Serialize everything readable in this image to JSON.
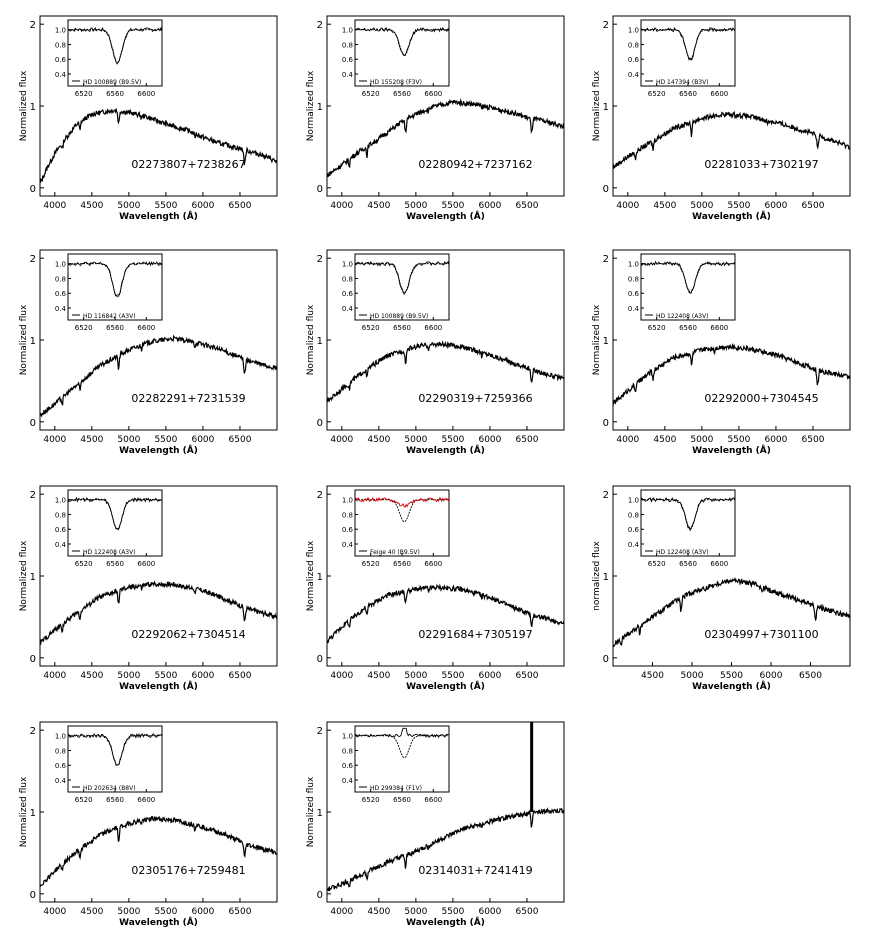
{
  "figure": {
    "main_ylabel": "Normalized flux",
    "alt_ylabel": "normalized flux",
    "xlabel": "Wavelength (Å)"
  },
  "chart_data": [
    {
      "type": "line",
      "id": "02273807+7238267",
      "label": "02273807+7238267",
      "xlim": [
        3800,
        7000
      ],
      "ylim": [
        0,
        2
      ],
      "xticks": [
        4000,
        4500,
        5000,
        5500,
        6000,
        6500
      ],
      "yticks": [
        0,
        1,
        2
      ],
      "inset": {
        "label": "HD 100889 (B9.5V)",
        "xlim": [
          6500,
          6620
        ],
        "xticks": [
          6520,
          6560,
          6600
        ],
        "yticks": [
          0.4,
          0.6,
          0.8,
          1.0
        ],
        "depth": 0.45
      },
      "series": {
        "name": "spectrum",
        "x": [
          3800,
          3900,
          4000,
          4100,
          4300,
          4500,
          4800,
          5000,
          5200,
          5500,
          5800,
          6000,
          6200,
          6500,
          6800,
          7000
        ],
        "y": [
          0.05,
          0.25,
          0.42,
          0.55,
          0.78,
          0.9,
          0.95,
          0.92,
          0.88,
          0.78,
          0.7,
          0.62,
          0.55,
          0.48,
          0.4,
          0.32
        ]
      }
    },
    {
      "type": "line",
      "id": "02280942+7237162",
      "label": "02280942+7237162",
      "xlim": [
        3800,
        7000
      ],
      "ylim": [
        0,
        2
      ],
      "xticks": [
        4000,
        4500,
        5000,
        5500,
        6000,
        6500
      ],
      "yticks": [
        0,
        1,
        2
      ],
      "inset": {
        "label": "HD 155208 (F3V)",
        "xlim": [
          6500,
          6620
        ],
        "xticks": [
          6520,
          6560,
          6600
        ],
        "yticks": [
          0.4,
          0.6,
          0.8,
          1.0
        ],
        "depth": 0.35
      },
      "series": {
        "name": "spectrum",
        "x": [
          3800,
          4000,
          4200,
          4500,
          4800,
          5000,
          5200,
          5500,
          5800,
          6000,
          6300,
          6500,
          6800,
          7000
        ],
        "y": [
          0.15,
          0.28,
          0.42,
          0.6,
          0.8,
          0.9,
          0.98,
          1.05,
          1.02,
          0.98,
          0.92,
          0.86,
          0.8,
          0.75
        ]
      }
    },
    {
      "type": "line",
      "id": "02281033+7302197",
      "label": "02281033+7302197",
      "xlim": [
        3800,
        7000
      ],
      "ylim": [
        0,
        2
      ],
      "xticks": [
        4000,
        4500,
        5000,
        5500,
        6000,
        6500
      ],
      "yticks": [
        0,
        1,
        2
      ],
      "inset": {
        "label": "HD 147394 (B3V)",
        "xlim": [
          6500,
          6620
        ],
        "xticks": [
          6520,
          6560,
          6600
        ],
        "yticks": [
          0.4,
          0.6,
          0.8,
          1.0
        ],
        "depth": 0.4
      },
      "series": {
        "name": "spectrum",
        "x": [
          3800,
          4000,
          4300,
          4600,
          5000,
          5300,
          5600,
          6000,
          6300,
          6600,
          7000
        ],
        "y": [
          0.25,
          0.38,
          0.55,
          0.72,
          0.85,
          0.9,
          0.88,
          0.8,
          0.72,
          0.63,
          0.5
        ]
      }
    },
    {
      "type": "line",
      "id": "02282291+7231539",
      "label": "02282291+7231539",
      "xlim": [
        3800,
        7000
      ],
      "ylim": [
        0,
        2
      ],
      "xticks": [
        4000,
        4500,
        5000,
        5500,
        6000,
        6500
      ],
      "yticks": [
        0,
        1,
        2
      ],
      "inset": {
        "label": "HD 116842 (A3V)",
        "xlim": [
          6500,
          6620
        ],
        "xticks": [
          6520,
          6560,
          6600
        ],
        "yticks": [
          0.4,
          0.6,
          0.8,
          1.0
        ],
        "depth": 0.45
      },
      "series": {
        "name": "spectrum",
        "x": [
          3800,
          4000,
          4300,
          4600,
          5000,
          5300,
          5600,
          6000,
          6300,
          6600,
          7000
        ],
        "y": [
          0.08,
          0.22,
          0.45,
          0.68,
          0.88,
          0.98,
          1.02,
          0.95,
          0.86,
          0.75,
          0.65
        ]
      }
    },
    {
      "type": "line",
      "id": "02290319+7259366",
      "label": "02290319+7259366",
      "xlim": [
        3800,
        7000
      ],
      "ylim": [
        0,
        2
      ],
      "xticks": [
        4000,
        4500,
        5000,
        5500,
        6000,
        6500
      ],
      "yticks": [
        0,
        1,
        2
      ],
      "inset": {
        "label": "HD 100889 (B9.5V)",
        "xlim": [
          6500,
          6620
        ],
        "xticks": [
          6520,
          6560,
          6600
        ],
        "yticks": [
          0.4,
          0.6,
          0.8,
          1.0
        ],
        "depth": 0.4
      },
      "series": {
        "name": "spectrum",
        "x": [
          3800,
          4000,
          4300,
          4600,
          5000,
          5300,
          5600,
          6000,
          6300,
          6600,
          7000
        ],
        "y": [
          0.25,
          0.4,
          0.62,
          0.8,
          0.92,
          0.95,
          0.92,
          0.82,
          0.72,
          0.63,
          0.52
        ]
      }
    },
    {
      "type": "line",
      "id": "02292000+7304545",
      "label": "02292000+7304545",
      "xlim": [
        3800,
        7000
      ],
      "ylim": [
        0,
        2
      ],
      "xticks": [
        4000,
        4500,
        5000,
        5500,
        6000,
        6500
      ],
      "yticks": [
        0,
        1,
        2
      ],
      "inset": {
        "label": "HD 122408 (A3V)",
        "xlim": [
          6500,
          6620
        ],
        "xticks": [
          6520,
          6560,
          6600
        ],
        "yticks": [
          0.4,
          0.6,
          0.8,
          1.0
        ],
        "depth": 0.4
      },
      "series": {
        "name": "spectrum",
        "x": [
          3800,
          4000,
          4300,
          4600,
          5000,
          5300,
          5600,
          6000,
          6300,
          6600,
          7000
        ],
        "y": [
          0.22,
          0.38,
          0.6,
          0.78,
          0.88,
          0.92,
          0.9,
          0.82,
          0.72,
          0.62,
          0.55
        ]
      }
    },
    {
      "type": "line",
      "id": "02292062+7304514",
      "label": "02292062+7304514",
      "xlim": [
        3800,
        7000
      ],
      "ylim": [
        0,
        2
      ],
      "xticks": [
        4000,
        4500,
        5000,
        5500,
        6000,
        6500
      ],
      "yticks": [
        0,
        1,
        2
      ],
      "inset": {
        "label": "HD 122408 (A3V)",
        "xlim": [
          6500,
          6620
        ],
        "xticks": [
          6520,
          6560,
          6600
        ],
        "yticks": [
          0.4,
          0.6,
          0.8,
          1.0
        ],
        "depth": 0.4
      },
      "series": {
        "name": "spectrum",
        "x": [
          3800,
          4000,
          4300,
          4600,
          5000,
          5300,
          5600,
          6000,
          6300,
          6600,
          7000
        ],
        "y": [
          0.18,
          0.34,
          0.55,
          0.74,
          0.86,
          0.9,
          0.9,
          0.82,
          0.72,
          0.6,
          0.5
        ]
      }
    },
    {
      "type": "line",
      "id": "02291684+7305197",
      "label": "02291684+7305197",
      "xlim": [
        3800,
        7000
      ],
      "ylim": [
        0,
        2
      ],
      "xticks": [
        4000,
        4500,
        5000,
        5500,
        6000,
        6500
      ],
      "yticks": [
        0,
        1,
        2
      ],
      "inset": {
        "label": "Feige 40 (B9.5V)",
        "xlim": [
          6500,
          6620
        ],
        "xticks": [
          6520,
          6560,
          6600
        ],
        "yticks": [
          0.4,
          0.6,
          0.8,
          1.0
        ],
        "depth": 0.3,
        "overlay": true
      },
      "series": {
        "name": "spectrum",
        "x": [
          3800,
          4000,
          4300,
          4600,
          5000,
          5300,
          5600,
          6000,
          6300,
          6600,
          7000
        ],
        "y": [
          0.2,
          0.38,
          0.6,
          0.76,
          0.84,
          0.86,
          0.84,
          0.74,
          0.62,
          0.52,
          0.42
        ]
      }
    },
    {
      "type": "line",
      "id": "02304997+7301100",
      "label": "02304997+7301100",
      "ylabel_key": "alt",
      "xlim": [
        4000,
        7000
      ],
      "ylim": [
        0,
        2
      ],
      "xticks": [
        4500,
        5000,
        5500,
        6000,
        6500
      ],
      "yticks": [
        0,
        1,
        2
      ],
      "inset": {
        "label": "HD 122408 (A3V)",
        "xlim": [
          6500,
          6620
        ],
        "xticks": [
          6520,
          6560,
          6600
        ],
        "yticks": [
          0.4,
          0.6,
          0.8,
          1.0
        ],
        "depth": 0.4
      },
      "series": {
        "name": "spectrum",
        "x": [
          4000,
          4200,
          4500,
          4800,
          5000,
          5300,
          5500,
          5800,
          6000,
          6300,
          6600,
          7000
        ],
        "y": [
          0.15,
          0.3,
          0.5,
          0.7,
          0.8,
          0.9,
          0.95,
          0.9,
          0.82,
          0.72,
          0.62,
          0.5
        ]
      }
    },
    {
      "type": "line",
      "id": "02305176+7259481",
      "label": "02305176+7259481",
      "xlim": [
        3800,
        7000
      ],
      "ylim": [
        0,
        2
      ],
      "xticks": [
        4000,
        4500,
        5000,
        5500,
        6000,
        6500
      ],
      "yticks": [
        0,
        1,
        2
      ],
      "inset": {
        "label": "HD 202634 (B8V)",
        "xlim": [
          6500,
          6620
        ],
        "xticks": [
          6520,
          6560,
          6600
        ],
        "yticks": [
          0.4,
          0.6,
          0.8,
          1.0
        ],
        "depth": 0.4
      },
      "series": {
        "name": "spectrum",
        "x": [
          3800,
          4000,
          4300,
          4600,
          5000,
          5300,
          5600,
          6000,
          6300,
          6600,
          7000
        ],
        "y": [
          0.1,
          0.28,
          0.52,
          0.72,
          0.86,
          0.92,
          0.9,
          0.82,
          0.72,
          0.6,
          0.5
        ]
      }
    },
    {
      "type": "line",
      "id": "02314031+7241419",
      "label": "02314031+7241419",
      "xlim": [
        3800,
        7000
      ],
      "ylim": [
        0,
        2
      ],
      "xticks": [
        4000,
        4500,
        5000,
        5500,
        6000,
        6500
      ],
      "yticks": [
        0,
        1,
        2
      ],
      "inset": {
        "label": "HD 299384 (F1V)",
        "xlim": [
          6500,
          6620
        ],
        "xticks": [
          6520,
          6560,
          6600
        ],
        "yticks": [
          0.4,
          0.6,
          0.8,
          1.0
        ],
        "depth": 0.3,
        "emission": true
      },
      "series": {
        "name": "spectrum",
        "x": [
          3800,
          4000,
          4300,
          4600,
          5000,
          5300,
          5600,
          6000,
          6300,
          6600,
          7000
        ],
        "y": [
          0.05,
          0.12,
          0.25,
          0.38,
          0.52,
          0.65,
          0.78,
          0.88,
          0.95,
          1.0,
          1.02
        ]
      }
    }
  ]
}
